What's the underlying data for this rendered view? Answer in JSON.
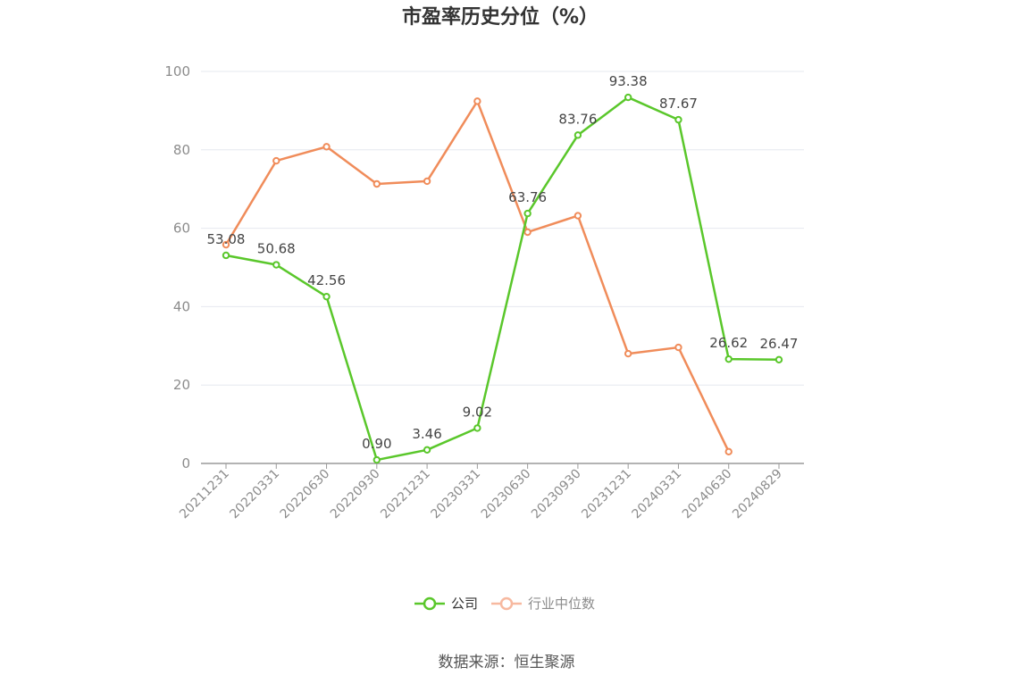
{
  "chart_data": {
    "type": "line",
    "title": "市盈率历史分位（%）",
    "categories": [
      "20211231",
      "20220331",
      "20220630",
      "20220930",
      "20221231",
      "20230331",
      "20230630",
      "20230930",
      "20231231",
      "20240331",
      "20240630",
      "20240829"
    ],
    "ylim": [
      0,
      100
    ],
    "yticks": [
      "0",
      "20",
      "40",
      "60",
      "80",
      "100"
    ],
    "grid": true,
    "legend_position": "bottom",
    "series": [
      {
        "name": "公司",
        "color": "#5ac72b",
        "values": [
          53.08,
          50.68,
          42.56,
          0.9,
          3.46,
          9.02,
          63.76,
          83.76,
          93.38,
          87.67,
          26.62,
          26.47
        ],
        "labels": [
          "53.08",
          "50.68",
          "42.56",
          "0.90",
          "3.46",
          "9.02",
          "63.76",
          "83.76",
          "93.38",
          "87.67",
          "26.62",
          "26.47"
        ]
      },
      {
        "name": "行业中位数",
        "color": "#f08c5a",
        "legend_color": "#f7b9a0",
        "values": [
          55.8,
          77.2,
          80.8,
          71.3,
          72.0,
          92.4,
          59.0,
          63.2,
          28.0,
          29.6,
          3.0,
          null
        ]
      }
    ]
  },
  "source": "数据来源：恒生聚源"
}
